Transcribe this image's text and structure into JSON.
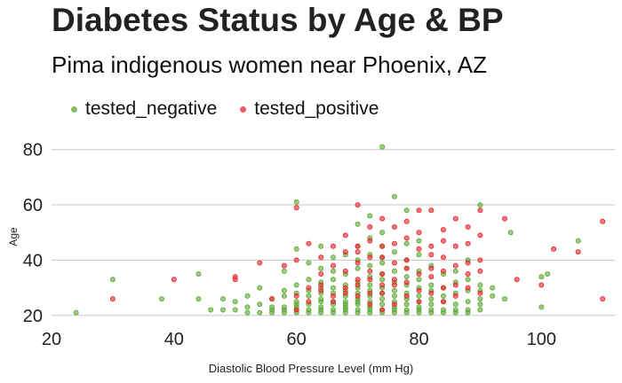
{
  "chart_data": {
    "type": "scatter",
    "title": "Diabetes Status by Age & BP",
    "subtitle": "Pima indigenous women near Phoenix, AZ",
    "xlabel": "Diastolic Blood Pressure Level (mm Hg)",
    "ylabel": "Age",
    "xlim": [
      20,
      112
    ],
    "ylim": [
      18,
      86
    ],
    "xticks": [
      20,
      40,
      60,
      80,
      100
    ],
    "yticks": [
      20,
      40,
      60,
      80
    ],
    "grid": "horizontal major",
    "legend_position": "top",
    "series": [
      {
        "name": "tested_negative",
        "color": "#5aa832",
        "points": [
          [
            24,
            21
          ],
          [
            30,
            33
          ],
          [
            38,
            26
          ],
          [
            44,
            35
          ],
          [
            44,
            26
          ],
          [
            46,
            22
          ],
          [
            48,
            22
          ],
          [
            48,
            26
          ],
          [
            50,
            22
          ],
          [
            50,
            25
          ],
          [
            52,
            23
          ],
          [
            52,
            21
          ],
          [
            52,
            27
          ],
          [
            54,
            24
          ],
          [
            54,
            21
          ],
          [
            54,
            30
          ],
          [
            56,
            22
          ],
          [
            56,
            26
          ],
          [
            56,
            23
          ],
          [
            56,
            21
          ],
          [
            58,
            23
          ],
          [
            58,
            27
          ],
          [
            58,
            29
          ],
          [
            58,
            21
          ],
          [
            58,
            36
          ],
          [
            58,
            22
          ],
          [
            60,
            23
          ],
          [
            60,
            22
          ],
          [
            60,
            25
          ],
          [
            60,
            21
          ],
          [
            60,
            28
          ],
          [
            60,
            31
          ],
          [
            60,
            61
          ],
          [
            60,
            44
          ],
          [
            60,
            24
          ],
          [
            62,
            22
          ],
          [
            62,
            27
          ],
          [
            62,
            24
          ],
          [
            62,
            21
          ],
          [
            62,
            29
          ],
          [
            62,
            33
          ],
          [
            62,
            39
          ],
          [
            64,
            25
          ],
          [
            64,
            22
          ],
          [
            64,
            23
          ],
          [
            64,
            21
          ],
          [
            64,
            28
          ],
          [
            64,
            30
          ],
          [
            64,
            26
          ],
          [
            64,
            45
          ],
          [
            64,
            37
          ],
          [
            64,
            32
          ],
          [
            66,
            22
          ],
          [
            66,
            24
          ],
          [
            66,
            28
          ],
          [
            66,
            21
          ],
          [
            66,
            30
          ],
          [
            66,
            25
          ],
          [
            66,
            36
          ],
          [
            66,
            41
          ],
          [
            66,
            33
          ],
          [
            68,
            23
          ],
          [
            68,
            27
          ],
          [
            68,
            22
          ],
          [
            68,
            29
          ],
          [
            68,
            25
          ],
          [
            68,
            31
          ],
          [
            68,
            21
          ],
          [
            68,
            35
          ],
          [
            68,
            42
          ],
          [
            68,
            24
          ],
          [
            70,
            22
          ],
          [
            70,
            26
          ],
          [
            70,
            24
          ],
          [
            70,
            28
          ],
          [
            70,
            21
          ],
          [
            70,
            30
          ],
          [
            70,
            32
          ],
          [
            70,
            37
          ],
          [
            70,
            45
          ],
          [
            70,
            53
          ],
          [
            70,
            40
          ],
          [
            70,
            25
          ],
          [
            72,
            22
          ],
          [
            72,
            25
          ],
          [
            72,
            27
          ],
          [
            72,
            23
          ],
          [
            72,
            29
          ],
          [
            72,
            31
          ],
          [
            72,
            34
          ],
          [
            72,
            21
          ],
          [
            72,
            38
          ],
          [
            72,
            42
          ],
          [
            72,
            48
          ],
          [
            72,
            56
          ],
          [
            74,
            22
          ],
          [
            74,
            26
          ],
          [
            74,
            24
          ],
          [
            74,
            28
          ],
          [
            74,
            30
          ],
          [
            74,
            21
          ],
          [
            74,
            33
          ],
          [
            74,
            35
          ],
          [
            74,
            39
          ],
          [
            74,
            41
          ],
          [
            74,
            45
          ],
          [
            74,
            81
          ],
          [
            74,
            50
          ],
          [
            76,
            22
          ],
          [
            76,
            25
          ],
          [
            76,
            23
          ],
          [
            76,
            27
          ],
          [
            76,
            29
          ],
          [
            76,
            32
          ],
          [
            76,
            36
          ],
          [
            76,
            43
          ],
          [
            76,
            63
          ],
          [
            76,
            21
          ],
          [
            78,
            22
          ],
          [
            78,
            24
          ],
          [
            78,
            26
          ],
          [
            78,
            28
          ],
          [
            78,
            31
          ],
          [
            78,
            21
          ],
          [
            78,
            34
          ],
          [
            78,
            37
          ],
          [
            78,
            40
          ],
          [
            78,
            46
          ],
          [
            78,
            58
          ],
          [
            80,
            22
          ],
          [
            80,
            23
          ],
          [
            80,
            25
          ],
          [
            80,
            27
          ],
          [
            80,
            30
          ],
          [
            80,
            33
          ],
          [
            80,
            36
          ],
          [
            80,
            21
          ],
          [
            80,
            42
          ],
          [
            80,
            47
          ],
          [
            82,
            22
          ],
          [
            82,
            24
          ],
          [
            82,
            26
          ],
          [
            82,
            29
          ],
          [
            82,
            31
          ],
          [
            82,
            38
          ],
          [
            82,
            21
          ],
          [
            84,
            22
          ],
          [
            84,
            25
          ],
          [
            84,
            27
          ],
          [
            84,
            30
          ],
          [
            84,
            35
          ],
          [
            84,
            21
          ],
          [
            86,
            22
          ],
          [
            86,
            24
          ],
          [
            86,
            28
          ],
          [
            86,
            32
          ],
          [
            86,
            36
          ],
          [
            86,
            21
          ],
          [
            88,
            22
          ],
          [
            88,
            25
          ],
          [
            88,
            29
          ],
          [
            88,
            21
          ],
          [
            88,
            40
          ],
          [
            88,
            33
          ],
          [
            90,
            22
          ],
          [
            90,
            26
          ],
          [
            90,
            24
          ],
          [
            90,
            29
          ],
          [
            90,
            60
          ],
          [
            90,
            31
          ],
          [
            92,
            27
          ],
          [
            92,
            30
          ],
          [
            94,
            26
          ],
          [
            95,
            50
          ],
          [
            100,
            23
          ],
          [
            100,
            34
          ],
          [
            101,
            35
          ],
          [
            106,
            47
          ]
        ]
      },
      {
        "name": "tested_positive",
        "color": "#e8232a",
        "points": [
          [
            30,
            26
          ],
          [
            40,
            33
          ],
          [
            50,
            33
          ],
          [
            50,
            34
          ],
          [
            54,
            39
          ],
          [
            56,
            26
          ],
          [
            58,
            38
          ],
          [
            60,
            40
          ],
          [
            60,
            22
          ],
          [
            60,
            27
          ],
          [
            60,
            59
          ],
          [
            62,
            30
          ],
          [
            62,
            46
          ],
          [
            62,
            25
          ],
          [
            64,
            31
          ],
          [
            64,
            35
          ],
          [
            64,
            29
          ],
          [
            64,
            41
          ],
          [
            66,
            38
          ],
          [
            66,
            27
          ],
          [
            66,
            25
          ],
          [
            66,
            45
          ],
          [
            68,
            43
          ],
          [
            68,
            28
          ],
          [
            68,
            36
          ],
          [
            68,
            30
          ],
          [
            68,
            49
          ],
          [
            70,
            39
          ],
          [
            70,
            27
          ],
          [
            70,
            31
          ],
          [
            70,
            43
          ],
          [
            70,
            60
          ],
          [
            70,
            45
          ],
          [
            70,
            33
          ],
          [
            72,
            41
          ],
          [
            72,
            28
          ],
          [
            72,
            52
          ],
          [
            72,
            36
          ],
          [
            72,
            33
          ],
          [
            72,
            47
          ],
          [
            72,
            24
          ],
          [
            74,
            45
          ],
          [
            74,
            41
          ],
          [
            74,
            31
          ],
          [
            74,
            55
          ],
          [
            74,
            28
          ],
          [
            74,
            35
          ],
          [
            74,
            22
          ],
          [
            76,
            39
          ],
          [
            76,
            31
          ],
          [
            76,
            46
          ],
          [
            76,
            33
          ],
          [
            76,
            52
          ],
          [
            76,
            24
          ],
          [
            78,
            48
          ],
          [
            78,
            32
          ],
          [
            78,
            40
          ],
          [
            78,
            37
          ],
          [
            78,
            27
          ],
          [
            78,
            54
          ],
          [
            80,
            44
          ],
          [
            80,
            58
          ],
          [
            80,
            35
          ],
          [
            80,
            29
          ],
          [
            80,
            50
          ],
          [
            80,
            25
          ],
          [
            82,
            45
          ],
          [
            82,
            34
          ],
          [
            82,
            58
          ],
          [
            82,
            37
          ],
          [
            82,
            28
          ],
          [
            82,
            42
          ],
          [
            84,
            51
          ],
          [
            84,
            36
          ],
          [
            84,
            47
          ],
          [
            84,
            30
          ],
          [
            84,
            41
          ],
          [
            84,
            25
          ],
          [
            86,
            38
          ],
          [
            86,
            45
          ],
          [
            86,
            27
          ],
          [
            86,
            55
          ],
          [
            86,
            31
          ],
          [
            88,
            46
          ],
          [
            88,
            39
          ],
          [
            88,
            30
          ],
          [
            88,
            35
          ],
          [
            88,
            52
          ],
          [
            90,
            58
          ],
          [
            90,
            36
          ],
          [
            90,
            49
          ],
          [
            90,
            40
          ],
          [
            90,
            28
          ],
          [
            94,
            55
          ],
          [
            96,
            33
          ],
          [
            100,
            31
          ],
          [
            102,
            44
          ],
          [
            106,
            43
          ],
          [
            110,
            26
          ],
          [
            110,
            54
          ]
        ]
      }
    ]
  }
}
